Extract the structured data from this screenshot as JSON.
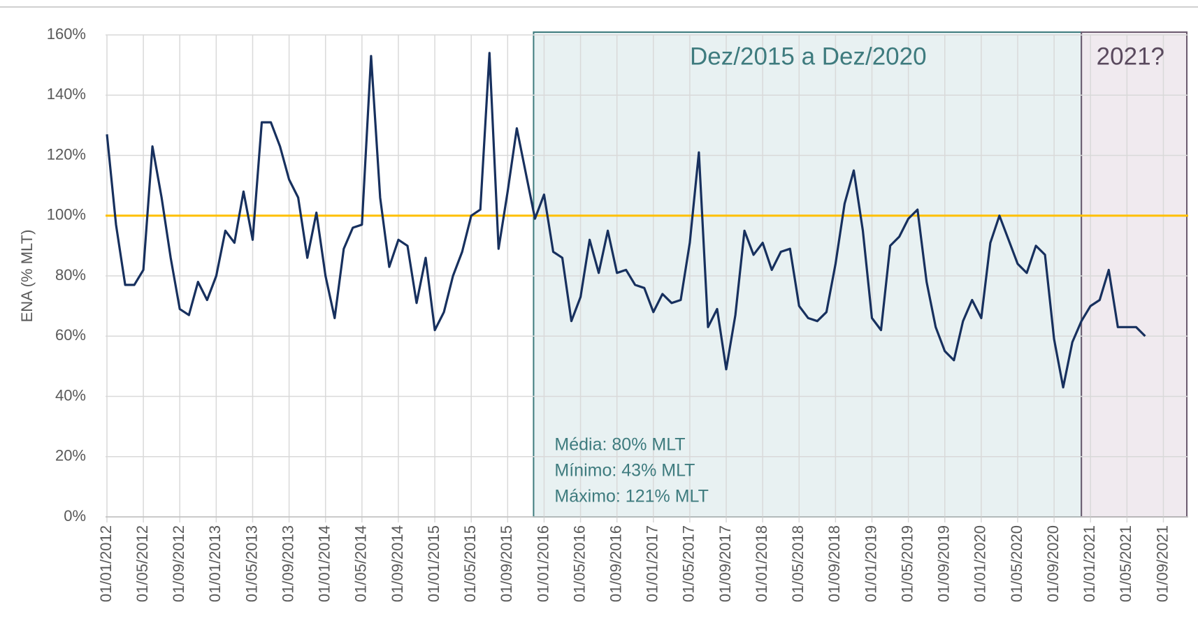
{
  "chart_data": {
    "type": "line",
    "y_label": "ENA (% MLT)",
    "categories": [
      "01/01/2012",
      null,
      null,
      null,
      "01/05/2012",
      null,
      null,
      null,
      "01/09/2012",
      null,
      null,
      null,
      "01/01/2013",
      null,
      null,
      null,
      "01/05/2013",
      null,
      null,
      null,
      "01/09/2013",
      null,
      null,
      null,
      "01/01/2014",
      null,
      null,
      null,
      "01/05/2014",
      null,
      null,
      null,
      "01/09/2014",
      null,
      null,
      null,
      "01/01/2015",
      null,
      null,
      null,
      "01/05/2015",
      null,
      null,
      null,
      "01/09/2015",
      null,
      null,
      null,
      "01/01/2016",
      null,
      null,
      null,
      "01/05/2016",
      null,
      null,
      null,
      "01/09/2016",
      null,
      null,
      null,
      "01/01/2017",
      null,
      null,
      null,
      "01/05/2017",
      null,
      null,
      null,
      "01/09/2017",
      null,
      null,
      null,
      "01/01/2018",
      null,
      null,
      null,
      "01/05/2018",
      null,
      null,
      null,
      "01/09/2018",
      null,
      null,
      null,
      "01/01/2019",
      null,
      null,
      null,
      "01/05/2019",
      null,
      null,
      null,
      "01/09/2019",
      null,
      null,
      null,
      "01/01/2020",
      null,
      null,
      null,
      "01/05/2020",
      null,
      null,
      null,
      "01/09/2020",
      null,
      null,
      null,
      "01/01/2021",
      null,
      null,
      null,
      "01/05/2021",
      null,
      null,
      null,
      "01/09/2021"
    ],
    "series": [
      {
        "name": "ENA",
        "color": "#17305e",
        "values": [
          127,
          97,
          77,
          77,
          82,
          123,
          106,
          86,
          69,
          67,
          78,
          72,
          80,
          95,
          91,
          108,
          92,
          131,
          131,
          123,
          112,
          106,
          86,
          101,
          80,
          66,
          89,
          96,
          97,
          153,
          106,
          83,
          92,
          90,
          71,
          86,
          62,
          68,
          80,
          88,
          100,
          102,
          154,
          89,
          108,
          129,
          114,
          99,
          107,
          88,
          86,
          65,
          73,
          92,
          81,
          95,
          81,
          82,
          77,
          76,
          68,
          74,
          71,
          72,
          91,
          121,
          63,
          69,
          49,
          67,
          95,
          87,
          91,
          82,
          88,
          89,
          70,
          66,
          65,
          68,
          84,
          104,
          115,
          95,
          66,
          62,
          90,
          93,
          99,
          102,
          78,
          63,
          55,
          52,
          65,
          72,
          66,
          91,
          100,
          92,
          84,
          81,
          90,
          87,
          59,
          43,
          58,
          65,
          70,
          72,
          82,
          63,
          63,
          63,
          60,
          null,
          null
        ]
      }
    ],
    "reference_line": {
      "value": 100,
      "color": "#ffc000"
    },
    "ylim": [
      0,
      160
    ],
    "yticks": [
      {
        "value": 0,
        "label": "0%"
      },
      {
        "value": 20,
        "label": "20%"
      },
      {
        "value": 40,
        "label": "40%"
      },
      {
        "value": 60,
        "label": "60%"
      },
      {
        "value": 80,
        "label": "80%"
      },
      {
        "value": 100,
        "label": "100%"
      },
      {
        "value": 120,
        "label": "120%"
      },
      {
        "value": 140,
        "label": "140%"
      },
      {
        "value": 160,
        "label": "160%"
      }
    ],
    "grid": true,
    "annotations": {
      "period": "Dez/2015 a Dez/2020",
      "forecast": "2021?",
      "stats": [
        "Média: 80% MLT",
        "Mínimo: 43% MLT",
        "Máximo: 121% MLT"
      ]
    }
  }
}
